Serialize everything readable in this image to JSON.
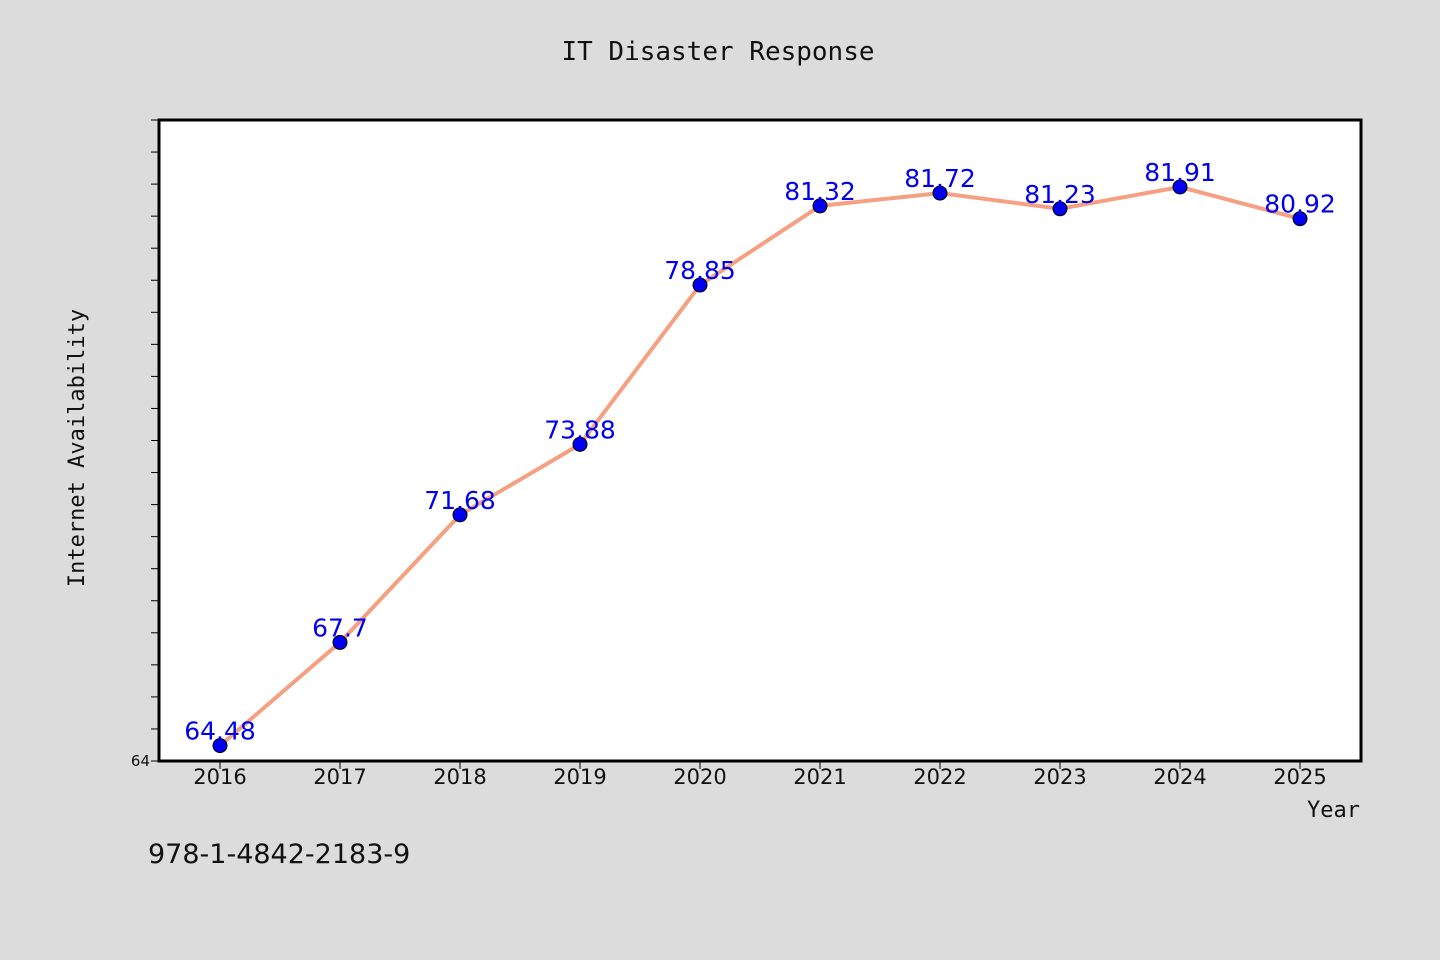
{
  "chart_data": {
    "type": "line",
    "title": "IT Disaster Response",
    "xlabel": "Year",
    "ylabel": "Internet Availability",
    "categories": [
      "2016",
      "2017",
      "2018",
      "2019",
      "2020",
      "2021",
      "2022",
      "2023",
      "2024",
      "2025"
    ],
    "series": [
      {
        "values": [
          64.48,
          67.7,
          71.68,
          73.88,
          78.85,
          81.32,
          81.72,
          81.23,
          81.91,
          80.92
        ],
        "labels": [
          "64.48",
          "67.7",
          "71.68",
          "73.88",
          "78.85",
          "81.32",
          "81.72",
          "81.23",
          "81.91",
          "80.92"
        ]
      }
    ],
    "y_tick_labels": [
      "64"
    ],
    "ylim": [
      64,
      84
    ],
    "grid": false,
    "legend": "none",
    "colors": {
      "line": "#f4a081",
      "marker": "#0000ee",
      "marker_edge": "#000000",
      "data_label": "#0000ee",
      "plot_background": "#ffffff",
      "figure_background": "#dcdcdc"
    }
  },
  "footer": {
    "isbn": "978-1-4842-2183-9"
  }
}
